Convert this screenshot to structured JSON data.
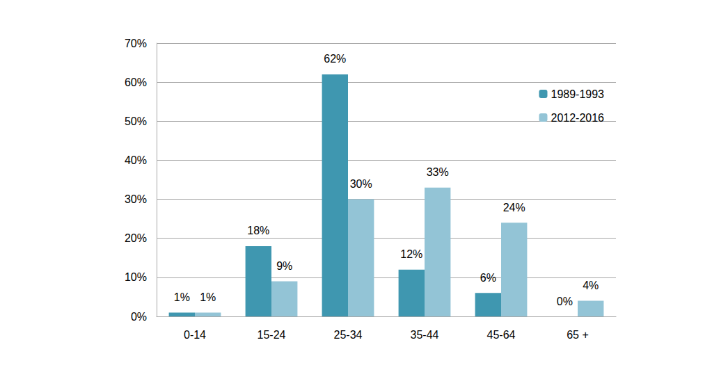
{
  "chart_data": {
    "type": "bar",
    "categories": [
      "0-14",
      "15-24",
      "25-34",
      "35-44",
      "45-64",
      "65 +"
    ],
    "series": [
      {
        "name": "1989-1993",
        "color": "#3f97b0",
        "values": [
          1,
          18,
          62,
          12,
          6,
          0
        ],
        "value_labels": [
          "1%",
          "18%",
          "62%",
          "12%",
          "6%",
          "0%"
        ]
      },
      {
        "name": "2012-2016",
        "color": "#93c4d6",
        "values": [
          1,
          9,
          30,
          33,
          24,
          4
        ],
        "value_labels": [
          "1%",
          "9%",
          "30%",
          "33%",
          "24%",
          "4%"
        ]
      }
    ],
    "ylim": [
      0,
      70
    ],
    "yticks": [
      {
        "value": 0,
        "label": "0%"
      },
      {
        "value": 10,
        "label": "10%"
      },
      {
        "value": 20,
        "label": "20%"
      },
      {
        "value": 30,
        "label": "30%"
      },
      {
        "value": 40,
        "label": "40%"
      },
      {
        "value": 50,
        "label": "50%"
      },
      {
        "value": 60,
        "label": "60%"
      },
      {
        "value": 70,
        "label": "70%"
      }
    ],
    "grid": true,
    "legend": "upper right",
    "data_labels": true
  }
}
